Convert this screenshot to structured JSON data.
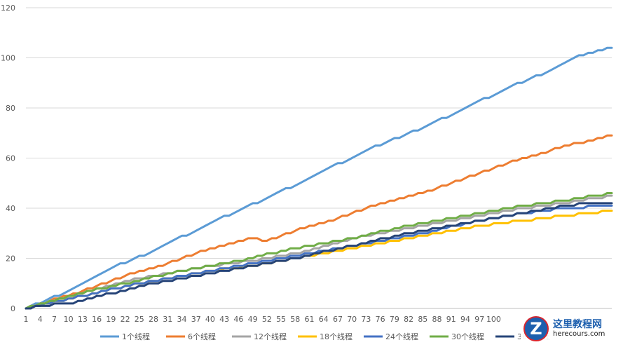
{
  "chart_data": {
    "type": "line",
    "title": "",
    "xlabel": "",
    "ylabel": "",
    "x_start": 1,
    "x_end": 125,
    "x_tick_labels": [
      "1",
      "4",
      "7",
      "10",
      "13",
      "16",
      "19",
      "22",
      "25",
      "28",
      "31",
      "34",
      "37",
      "40",
      "43",
      "46",
      "49",
      "52",
      "55",
      "58",
      "61",
      "64",
      "67",
      "70",
      "73",
      "76",
      "79",
      "82",
      "85",
      "88",
      "91",
      "94",
      "97",
      "100"
    ],
    "y_ticks": [
      0,
      20,
      40,
      60,
      80,
      100,
      120
    ],
    "ylim": [
      0,
      120
    ],
    "grid": "horizontal",
    "legend_position": "bottom",
    "series": [
      {
        "name": "1个线程",
        "color": "#5b9bd5",
        "endpoints": [
          [
            1,
            0
          ],
          [
            10,
            7
          ],
          [
            19,
            16
          ],
          [
            28,
            23
          ],
          [
            40,
            34
          ],
          [
            52,
            44
          ],
          [
            61,
            52
          ],
          [
            73,
            63
          ],
          [
            85,
            72
          ],
          [
            94,
            80
          ],
          [
            103,
            88
          ],
          [
            112,
            95
          ],
          [
            118,
            101
          ],
          [
            125,
            104
          ]
        ]
      },
      {
        "name": "6个线程",
        "color": "#ed7d31",
        "endpoints": [
          [
            1,
            0
          ],
          [
            13,
            7
          ],
          [
            22,
            13
          ],
          [
            31,
            18
          ],
          [
            40,
            24
          ],
          [
            49,
            28
          ],
          [
            52,
            27
          ],
          [
            58,
            31
          ],
          [
            67,
            36
          ],
          [
            76,
            42
          ],
          [
            85,
            46
          ],
          [
            94,
            52
          ],
          [
            103,
            58
          ],
          [
            112,
            63
          ],
          [
            118,
            66
          ],
          [
            125,
            69
          ]
        ]
      },
      {
        "name": "12个线程",
        "color": "#a5a5a5",
        "endpoints": [
          [
            1,
            0
          ],
          [
            13,
            6
          ],
          [
            25,
            12
          ],
          [
            37,
            16
          ],
          [
            49,
            19
          ],
          [
            61,
            23
          ],
          [
            73,
            29
          ],
          [
            85,
            33
          ],
          [
            97,
            37
          ],
          [
            106,
            40
          ],
          [
            115,
            42
          ],
          [
            125,
            45
          ]
        ]
      },
      {
        "name": "18个线程",
        "color": "#ffc000",
        "endpoints": [
          [
            1,
            0
          ],
          [
            13,
            5
          ],
          [
            25,
            10
          ],
          [
            37,
            14
          ],
          [
            49,
            17
          ],
          [
            61,
            21
          ],
          [
            73,
            25
          ],
          [
            85,
            29
          ],
          [
            97,
            33
          ],
          [
            106,
            35
          ],
          [
            115,
            37
          ],
          [
            121,
            38
          ],
          [
            125,
            39
          ]
        ]
      },
      {
        "name": "24个线程",
        "color": "#4472c4",
        "endpoints": [
          [
            1,
            0
          ],
          [
            13,
            5
          ],
          [
            25,
            10
          ],
          [
            37,
            14
          ],
          [
            49,
            18
          ],
          [
            61,
            22
          ],
          [
            73,
            26
          ],
          [
            85,
            30
          ],
          [
            97,
            35
          ],
          [
            106,
            38
          ],
          [
            115,
            40
          ],
          [
            125,
            41
          ]
        ]
      },
      {
        "name": "30个线程",
        "color": "#70ad47",
        "endpoints": [
          [
            1,
            0
          ],
          [
            10,
            5
          ],
          [
            22,
            10
          ],
          [
            34,
            15
          ],
          [
            46,
            19
          ],
          [
            58,
            24
          ],
          [
            70,
            28
          ],
          [
            82,
            33
          ],
          [
            94,
            37
          ],
          [
            106,
            41
          ],
          [
            115,
            43
          ],
          [
            125,
            46
          ]
        ]
      },
      {
        "name": "36个线程",
        "color": "#264478",
        "endpoints": [
          [
            1,
            0
          ],
          [
            4,
            1
          ],
          [
            10,
            2
          ],
          [
            19,
            6
          ],
          [
            28,
            10
          ],
          [
            37,
            13
          ],
          [
            46,
            16
          ],
          [
            58,
            20
          ],
          [
            70,
            25
          ],
          [
            82,
            30
          ],
          [
            94,
            34
          ],
          [
            103,
            37
          ],
          [
            112,
            40
          ],
          [
            120,
            42
          ],
          [
            125,
            42
          ]
        ]
      }
    ]
  },
  "watermark": {
    "logo_letter": "Z",
    "title": "这里教程网",
    "url": "herecours.com"
  }
}
